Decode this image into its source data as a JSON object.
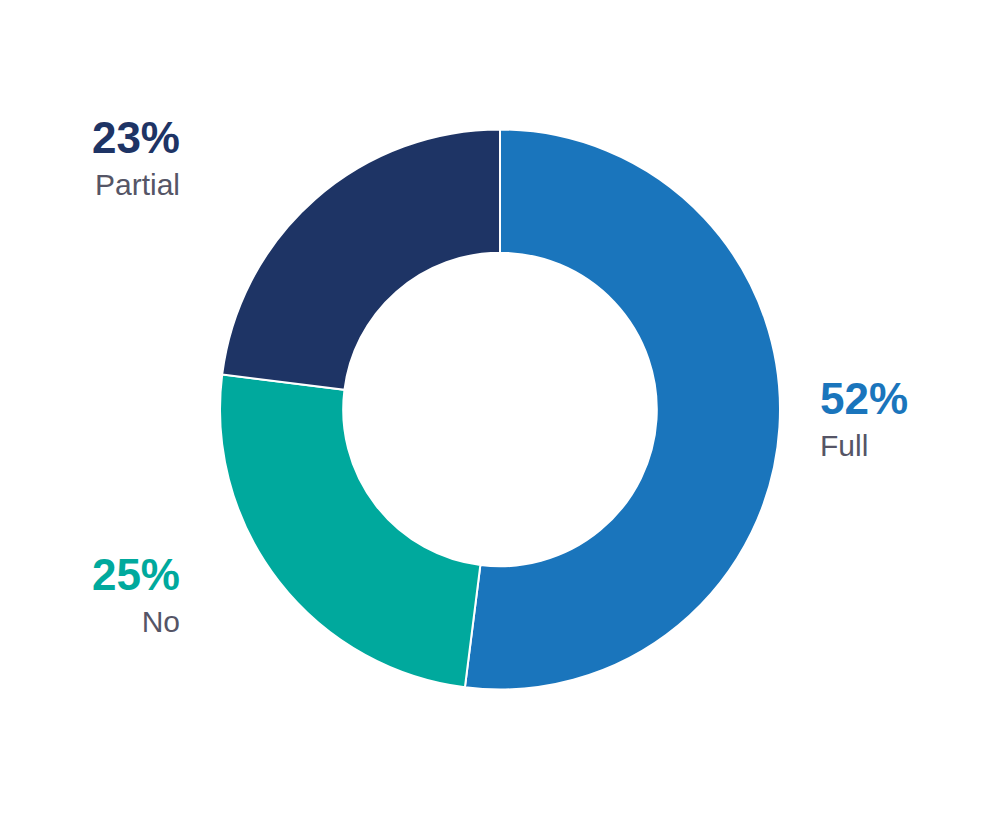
{
  "chart_data": {
    "type": "donut",
    "categories": [
      "Full",
      "No",
      "Partial"
    ],
    "values": [
      52,
      25,
      23
    ],
    "value_labels": [
      "52%",
      "25%",
      "23%"
    ],
    "colors": [
      "#1a75bc",
      "#00a99d",
      "#1e3465"
    ],
    "data_labels": true
  }
}
